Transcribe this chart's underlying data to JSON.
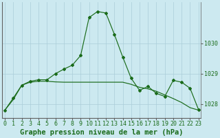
{
  "title": "Graphe pression niveau de la mer (hPa)",
  "bg_color": "#cce9f0",
  "grid_color": "#aacdd8",
  "line_color": "#1a6b1a",
  "x_labels": [
    "0",
    "1",
    "2",
    "3",
    "4",
    "5",
    "6",
    "7",
    "8",
    "9",
    "10",
    "11",
    "12",
    "13",
    "14",
    "15",
    "16",
    "17",
    "18",
    "19",
    "20",
    "21",
    "22",
    "23"
  ],
  "series1": [
    1027.8,
    1028.15,
    1028.62,
    1028.72,
    1028.75,
    1028.75,
    1028.73,
    1028.72,
    1028.72,
    1028.72,
    1028.72,
    1028.72,
    1028.72,
    1028.72,
    1028.72,
    1028.65,
    1028.55,
    1028.5,
    1028.42,
    1028.3,
    1028.18,
    1028.05,
    1027.88,
    1027.8
  ],
  "series2": [
    1027.8,
    1028.2,
    1028.62,
    1028.75,
    1028.8,
    1028.8,
    1029.0,
    1029.15,
    1029.28,
    1029.6,
    1030.85,
    1031.05,
    1031.0,
    1030.3,
    1029.55,
    1028.85,
    1028.45,
    1028.58,
    1028.35,
    1028.25,
    1028.78,
    1028.72,
    1028.52,
    1027.82
  ],
  "ylim": [
    1027.55,
    1031.35
  ],
  "yticks": [
    1028,
    1029,
    1030
  ],
  "title_fontsize": 7.5,
  "tick_fontsize": 6.0,
  "ylabel_right": true
}
